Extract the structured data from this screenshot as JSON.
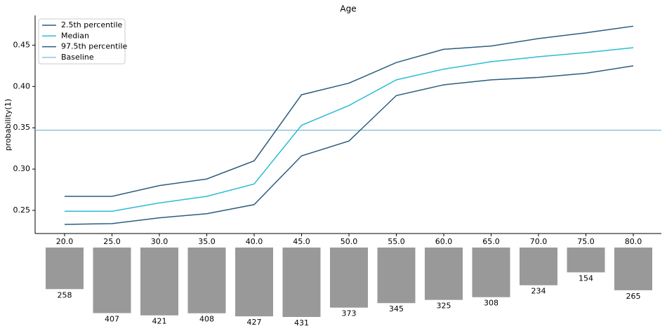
{
  "chart_data": {
    "type": "line",
    "title": "Age",
    "y_label": "probability(1)",
    "categories": [
      "20.0",
      "25.0",
      "30.0",
      "35.0",
      "40.0",
      "45.0",
      "50.0",
      "55.0",
      "60.0",
      "65.0",
      "70.0",
      "75.0",
      "80.0"
    ],
    "series": [
      {
        "name": "2.5th percentile",
        "color": "#2b5d7d",
        "values": [
          0.233,
          0.234,
          0.241,
          0.246,
          0.257,
          0.316,
          0.334,
          0.389,
          0.402,
          0.408,
          0.411,
          0.416,
          0.425
        ]
      },
      {
        "name": "Median",
        "color": "#2bbcd4",
        "values": [
          0.249,
          0.249,
          0.259,
          0.267,
          0.282,
          0.353,
          0.377,
          0.408,
          0.421,
          0.43,
          0.436,
          0.441,
          0.447
        ]
      },
      {
        "name": "97.5th percentile",
        "color": "#2b5d7d",
        "values": [
          0.267,
          0.267,
          0.28,
          0.288,
          0.31,
          0.39,
          0.404,
          0.429,
          0.445,
          0.449,
          0.458,
          0.465,
          0.473
        ]
      }
    ],
    "baseline": {
      "name": "Baseline",
      "value": 0.347,
      "color": "#5ea8c8"
    },
    "ylim": [
      0.222,
      0.486
    ],
    "yticks": [
      0.25,
      {
        "value": 0.3,
        "label": "0.30"
      },
      0.35,
      {
        "value": 0.4,
        "label": "0.40"
      },
      0.45
    ],
    "legend": "upper-left",
    "counts": [
      258,
      407,
      421,
      408,
      427,
      431,
      373,
      345,
      325,
      308,
      234,
      154,
      265
    ],
    "count_color": "#999999"
  }
}
